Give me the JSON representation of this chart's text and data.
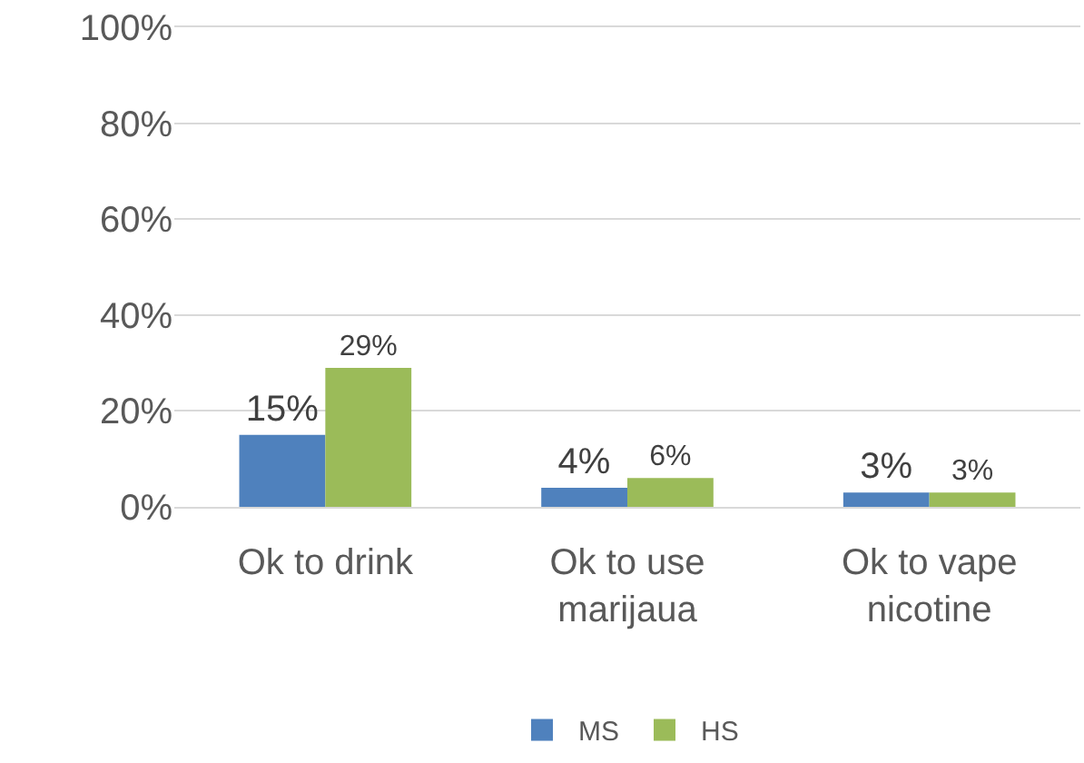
{
  "chart_data": {
    "type": "bar",
    "categories": [
      "Ok to drink",
      "Ok to use\nmarijaua",
      "Ok to vape\nnicotine"
    ],
    "series": [
      {
        "name": "MS",
        "color": "#4f81bd",
        "values": [
          15,
          4,
          3
        ],
        "value_labels": [
          "15%",
          "4%",
          "3%"
        ]
      },
      {
        "name": "HS",
        "color": "#9bbb59",
        "values": [
          29,
          6,
          3
        ],
        "value_labels": [
          "29%",
          "6%",
          "3%"
        ]
      }
    ],
    "ylim": [
      0,
      100
    ],
    "yticks": [
      {
        "value": 0,
        "label": "0%"
      },
      {
        "value": 20,
        "label": "20%"
      },
      {
        "value": 40,
        "label": "40%"
      },
      {
        "value": 60,
        "label": "60%"
      },
      {
        "value": 80,
        "label": "80%"
      },
      {
        "value": 100,
        "label": "100%"
      }
    ],
    "grid": "y",
    "legend": "bottom"
  }
}
